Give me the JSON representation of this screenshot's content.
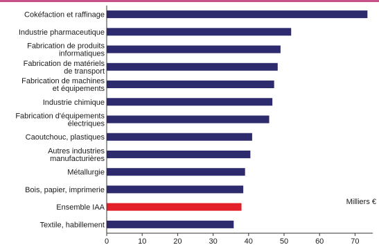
{
  "colors": {
    "bar": "#2d2a6e",
    "highlight": "#e3202a",
    "top_rule": "#c8508a",
    "axis": "#333333"
  },
  "chart_data": {
    "type": "bar",
    "orientation": "horizontal",
    "categories": [
      [
        "Cokéfaction et raffinage"
      ],
      [
        "Industrie pharmaceutique"
      ],
      [
        "Fabrication de produits",
        "informatiques"
      ],
      [
        "Fabrication de matériels",
        "de transport"
      ],
      [
        "Fabrication de machines",
        "et équipements"
      ],
      [
        "Industrie chimique"
      ],
      [
        "Fabrication d'équipements",
        "électriques"
      ],
      [
        "Caoutchouc, plastiques"
      ],
      [
        "Autres industries",
        "manufacturières"
      ],
      [
        "Métallurgie"
      ],
      [
        "Bois, papier, imprimerie"
      ],
      [
        "Ensemble IAA"
      ],
      [
        "Textile, habillement"
      ]
    ],
    "values": [
      73.5,
      52,
      49,
      48.2,
      47.2,
      46.7,
      45.8,
      41,
      40.5,
      39,
      38.5,
      38,
      35.8
    ],
    "highlight_index": 11,
    "xlim": [
      0,
      75
    ],
    "xticks": [
      "0",
      "10",
      "20",
      "30",
      "40",
      "50",
      "60",
      "70"
    ],
    "unit_label": "Milliers  €",
    "legend": "none",
    "grid": false
  }
}
